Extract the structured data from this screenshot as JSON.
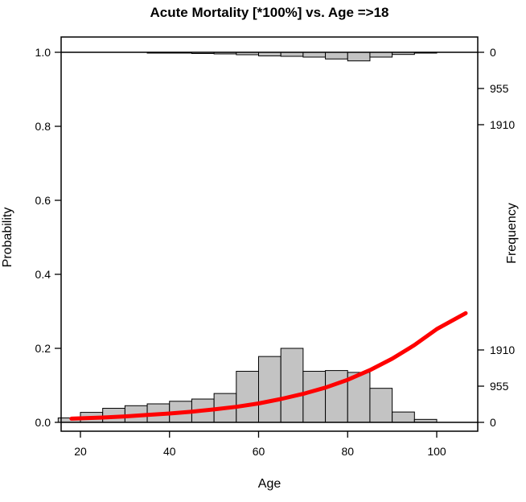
{
  "chart_data": {
    "type": "bar",
    "subtype": "logistic-regression-histogram",
    "title": "Acute Mortality [*100%] vs. Age =>18",
    "xlabel": "Age",
    "ylabel_left": "Probability",
    "ylabel_right": "Frequency",
    "x_ticks": [
      20,
      40,
      60,
      80,
      100
    ],
    "xlim": [
      14,
      110
    ],
    "y_ticks_left": [
      "1.0",
      "0.8",
      "0.6",
      "0.4",
      "0.2",
      "0.0"
    ],
    "ylim_probability": [
      0.0,
      1.0
    ],
    "right_axis": {
      "top_tick_values": [
        0,
        955,
        1910
      ],
      "bottom_tick_values": [
        1910,
        955,
        0
      ],
      "max_frequency": 1910
    },
    "grid": "off",
    "legend": "none",
    "bin_width_years": 5,
    "categories": [
      "15-20",
      "20-25",
      "25-30",
      "30-35",
      "35-40",
      "40-45",
      "45-50",
      "50-55",
      "55-60",
      "60-65",
      "65-70",
      "70-75",
      "75-80",
      "80-85",
      "85-90",
      "90-95",
      "95-100"
    ],
    "bin_start_ages": [
      15,
      20,
      25,
      30,
      35,
      40,
      45,
      50,
      55,
      60,
      65,
      70,
      75,
      80,
      85,
      90,
      95
    ],
    "series": [
      {
        "name": "survivors-bottom-histogram",
        "baseline_probability": 0.0,
        "direction": "up",
        "probabilities": [
          0.012,
          0.027,
          0.038,
          0.045,
          0.05,
          0.057,
          0.063,
          0.078,
          0.138,
          0.178,
          0.2,
          0.138,
          0.14,
          0.135,
          0.092,
          0.028,
          0.008
        ],
        "frequencies": [
          115,
          260,
          360,
          430,
          480,
          545,
          600,
          745,
          1320,
          1700,
          1910,
          1320,
          1335,
          1290,
          880,
          265,
          75
        ]
      },
      {
        "name": "deaths-top-histogram",
        "baseline_probability": 1.0,
        "direction": "down",
        "frequencies": [
          0,
          0,
          0,
          0,
          21,
          21,
          32,
          42,
          64,
          95,
          106,
          127,
          176,
          227,
          127,
          57,
          21
        ]
      }
    ],
    "curve": {
      "name": "logistic-fit",
      "color": "#FF0000",
      "points": [
        [
          18,
          0.01
        ],
        [
          25,
          0.013
        ],
        [
          30,
          0.016
        ],
        [
          35,
          0.02
        ],
        [
          40,
          0.024
        ],
        [
          45,
          0.029
        ],
        [
          50,
          0.035
        ],
        [
          55,
          0.042
        ],
        [
          60,
          0.051
        ],
        [
          65,
          0.063
        ],
        [
          70,
          0.077
        ],
        [
          75,
          0.094
        ],
        [
          80,
          0.115
        ],
        [
          85,
          0.141
        ],
        [
          90,
          0.172
        ],
        [
          95,
          0.209
        ],
        [
          100,
          0.252
        ],
        [
          103,
          0.272
        ],
        [
          106.5,
          0.295
        ]
      ]
    },
    "colors": {
      "bar_fill": "#C3C3C3",
      "bar_stroke": "#000000",
      "curve": "#FF0000",
      "axis": "#000000",
      "background": "#FFFFFF"
    }
  }
}
